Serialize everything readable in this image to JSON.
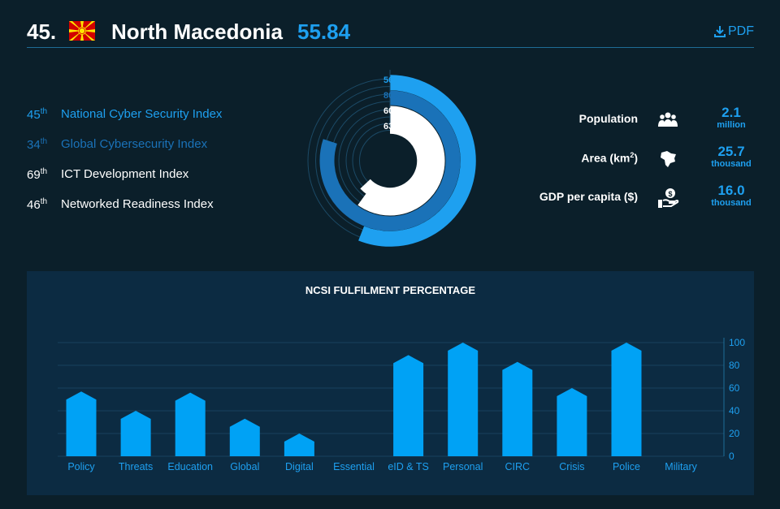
{
  "header": {
    "rank": "45.",
    "country": "North Macedonia",
    "score": "55.84",
    "pdf_label": "PDF",
    "flag_colors": {
      "field": "#d20000",
      "sun": "#ffe600"
    }
  },
  "indexes": [
    {
      "rank": "45",
      "suffix": "th",
      "name": "National Cyber Security Index",
      "percent": "56%",
      "value": 56,
      "color": "#1ea0f0"
    },
    {
      "rank": "34",
      "suffix": "th",
      "name": "Global Cybersecurity Index",
      "percent": "80%",
      "value": 80,
      "color": "#1a72b8"
    },
    {
      "rank": "69",
      "suffix": "th",
      "name": "ICT Development Index",
      "percent": "60%",
      "value": 60,
      "color": "#ffffff"
    },
    {
      "rank": "46",
      "suffix": "th",
      "name": "Networked Readiness Index",
      "percent": "63%",
      "value": 63,
      "color": "#ffffff"
    }
  ],
  "stats": [
    {
      "label": "Population",
      "value": "2.1",
      "unit": "million",
      "icon": "people-icon"
    },
    {
      "label": "Area (km",
      "label_sup": "2",
      "label_tail": ")",
      "value": "25.7",
      "unit": "thousand",
      "icon": "map-icon"
    },
    {
      "label": "GDP per capita ($)",
      "value": "16.0",
      "unit": "thousand",
      "icon": "money-hand-icon"
    }
  ],
  "chart_data": {
    "type": "bar",
    "title": "NCSI FULFILMENT PERCENTAGE",
    "categories": [
      "Policy",
      "Threats",
      "Education",
      "Global",
      "Digital",
      "Essential",
      "eID & TS",
      "Personal",
      "CIRC",
      "Crisis",
      "Police",
      "Military"
    ],
    "values": [
      57,
      40,
      56,
      33,
      20,
      0,
      89,
      100,
      83,
      60,
      100,
      0
    ],
    "ylim": [
      0,
      100
    ],
    "yticks": [
      0,
      20,
      40,
      60,
      80,
      100
    ],
    "y_axis_position": "right",
    "grid": true,
    "bar_color": "#00a2f5"
  }
}
